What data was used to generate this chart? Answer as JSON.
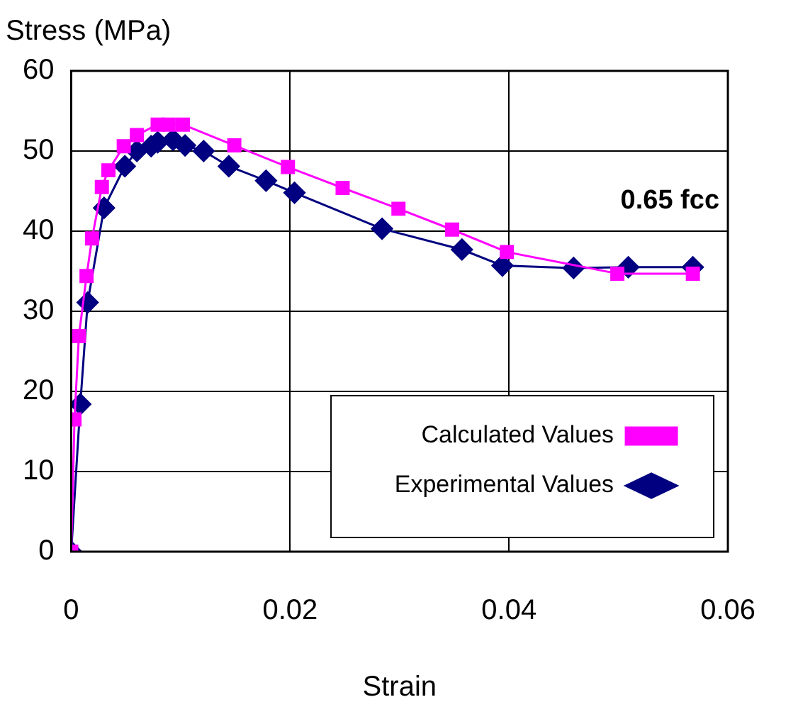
{
  "chart_data": {
    "type": "line",
    "xlabel": "Strain",
    "ylabel": "Stress (MPa)",
    "xlim": [
      0,
      0.06
    ],
    "xticks": [
      0,
      0.02,
      0.04,
      0.06
    ],
    "ylim": [
      0,
      60
    ],
    "yticks": [
      0,
      10,
      20,
      30,
      40,
      50,
      60
    ],
    "grid": true,
    "legend": "bottom right",
    "line_style": "solid",
    "annotations": [
      "0.65 fcc"
    ],
    "series": [
      {
        "name": "Experimental Values",
        "color": "#000080",
        "marker": "diamond",
        "x": [
          0,
          0.00083,
          0.0015,
          0.003,
          0.0049,
          0.006,
          0.0073,
          0.0079,
          0.0093,
          0.0104,
          0.0121,
          0.0144,
          0.0178,
          0.0204,
          0.0284,
          0.0357,
          0.0394,
          0.0459,
          0.0509,
          0.0568
        ],
        "values": [
          0,
          18.4,
          31.1,
          42.9,
          48.1,
          50,
          50.6,
          51.1,
          51.4,
          50.7,
          50,
          48.1,
          46.3,
          44.8,
          40.3,
          37.7,
          35.7,
          35.4,
          35.5,
          35.5
        ]
      },
      {
        "name": "Calculated Values",
        "color": "#ff00ff",
        "marker": "square",
        "x": [
          0,
          0.0003,
          0.0007,
          0.0014,
          0.0019,
          0.0028,
          0.0034,
          0.0048,
          0.006,
          0.0079,
          0.0089,
          0.0102,
          0.0149,
          0.0198,
          0.0248,
          0.0299,
          0.0348,
          0.0398,
          0.0499,
          0.0568
        ],
        "values": [
          0,
          16.5,
          26.9,
          34.4,
          39.1,
          45.5,
          47.6,
          50.6,
          52,
          53.3,
          53.3,
          53.3,
          50.7,
          48,
          45.4,
          42.8,
          40.2,
          37.4,
          34.7,
          34.7
        ]
      }
    ]
  }
}
